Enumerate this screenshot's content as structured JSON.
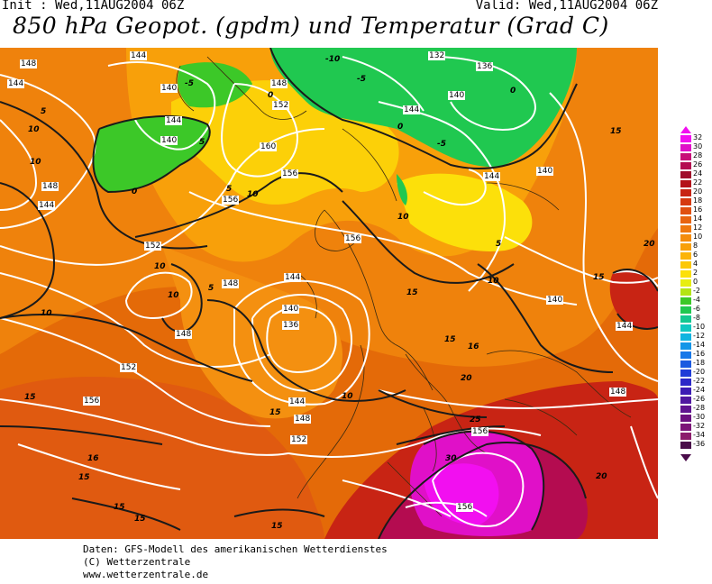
{
  "header": {
    "init": "Init : Wed,11AUG2004 06Z",
    "valid": "Valid: Wed,11AUG2004 06Z",
    "title": "850 hPa Geopot. (gpdm) und Temperatur (Grad C)"
  },
  "footer": {
    "line1": "Daten: GFS-Modell des amerikanischen Wetterdienstes",
    "line2": "(C) Wetterzentrale",
    "line3": "www.wetterzentrale.de"
  },
  "legend": {
    "entries": [
      {
        "value": "32",
        "color": "#f20ff0"
      },
      {
        "value": "30",
        "color": "#e010c8"
      },
      {
        "value": "28",
        "color": "#c80e78"
      },
      {
        "value": "26",
        "color": "#b40c50"
      },
      {
        "value": "24",
        "color": "#a00c2a"
      },
      {
        "value": "22",
        "color": "#b4121a"
      },
      {
        "value": "20",
        "color": "#c82414"
      },
      {
        "value": "18",
        "color": "#d63a10"
      },
      {
        "value": "16",
        "color": "#e05010"
      },
      {
        "value": "14",
        "color": "#e86410"
      },
      {
        "value": "12",
        "color": "#ef780e"
      },
      {
        "value": "10",
        "color": "#f48c0c"
      },
      {
        "value": "8",
        "color": "#f8a00a"
      },
      {
        "value": "6",
        "color": "#fcb408"
      },
      {
        "value": "4",
        "color": "#fcc806"
      },
      {
        "value": "2",
        "color": "#fce00a"
      },
      {
        "value": "0",
        "color": "#e8ee10"
      },
      {
        "value": "-2",
        "color": "#b4e414"
      },
      {
        "value": "-4",
        "color": "#3cc828"
      },
      {
        "value": "-6",
        "color": "#20c850"
      },
      {
        "value": "-8",
        "color": "#14c890"
      },
      {
        "value": "-10",
        "color": "#10c8c0"
      },
      {
        "value": "-12",
        "color": "#10b4e0"
      },
      {
        "value": "-14",
        "color": "#1496e8"
      },
      {
        "value": "-16",
        "color": "#1878e8"
      },
      {
        "value": "-18",
        "color": "#1c5ae0"
      },
      {
        "value": "-20",
        "color": "#203cd8"
      },
      {
        "value": "-22",
        "color": "#2c28c8"
      },
      {
        "value": "-24",
        "color": "#3c1cb4"
      },
      {
        "value": "-26",
        "color": "#5018a0"
      },
      {
        "value": "-28",
        "color": "#601490"
      },
      {
        "value": "-30",
        "color": "#6c1080"
      },
      {
        "value": "-32",
        "color": "#7c1478"
      },
      {
        "value": "-34",
        "color": "#8c1c6c"
      },
      {
        "value": "-36",
        "color": "#4a0c4a"
      }
    ]
  },
  "map": {
    "geopotential_labels": [
      "148",
      "144",
      "140",
      "144",
      "140",
      "144",
      "148",
      "152",
      "160",
      "156",
      "156",
      "132",
      "136",
      "140",
      "140",
      "144",
      "144",
      "148",
      "144",
      "156",
      "148",
      "152",
      "144",
      "140",
      "148",
      "136",
      "144",
      "148",
      "152",
      "156",
      "152",
      "156",
      "140",
      "144",
      "156",
      "148"
    ],
    "temperature_labels": [
      "-10",
      "-5",
      "-5",
      "0",
      "0",
      "0",
      "0",
      "5",
      "5",
      "5",
      "10",
      "10",
      "10",
      "10",
      "10",
      "10",
      "10",
      "10",
      "5",
      "5",
      "15",
      "15",
      "15",
      "15",
      "16",
      "20",
      "20",
      "25",
      "30",
      "16",
      "15",
      "15",
      "15",
      "15",
      "15",
      "10",
      "15",
      "20",
      "-5"
    ]
  }
}
